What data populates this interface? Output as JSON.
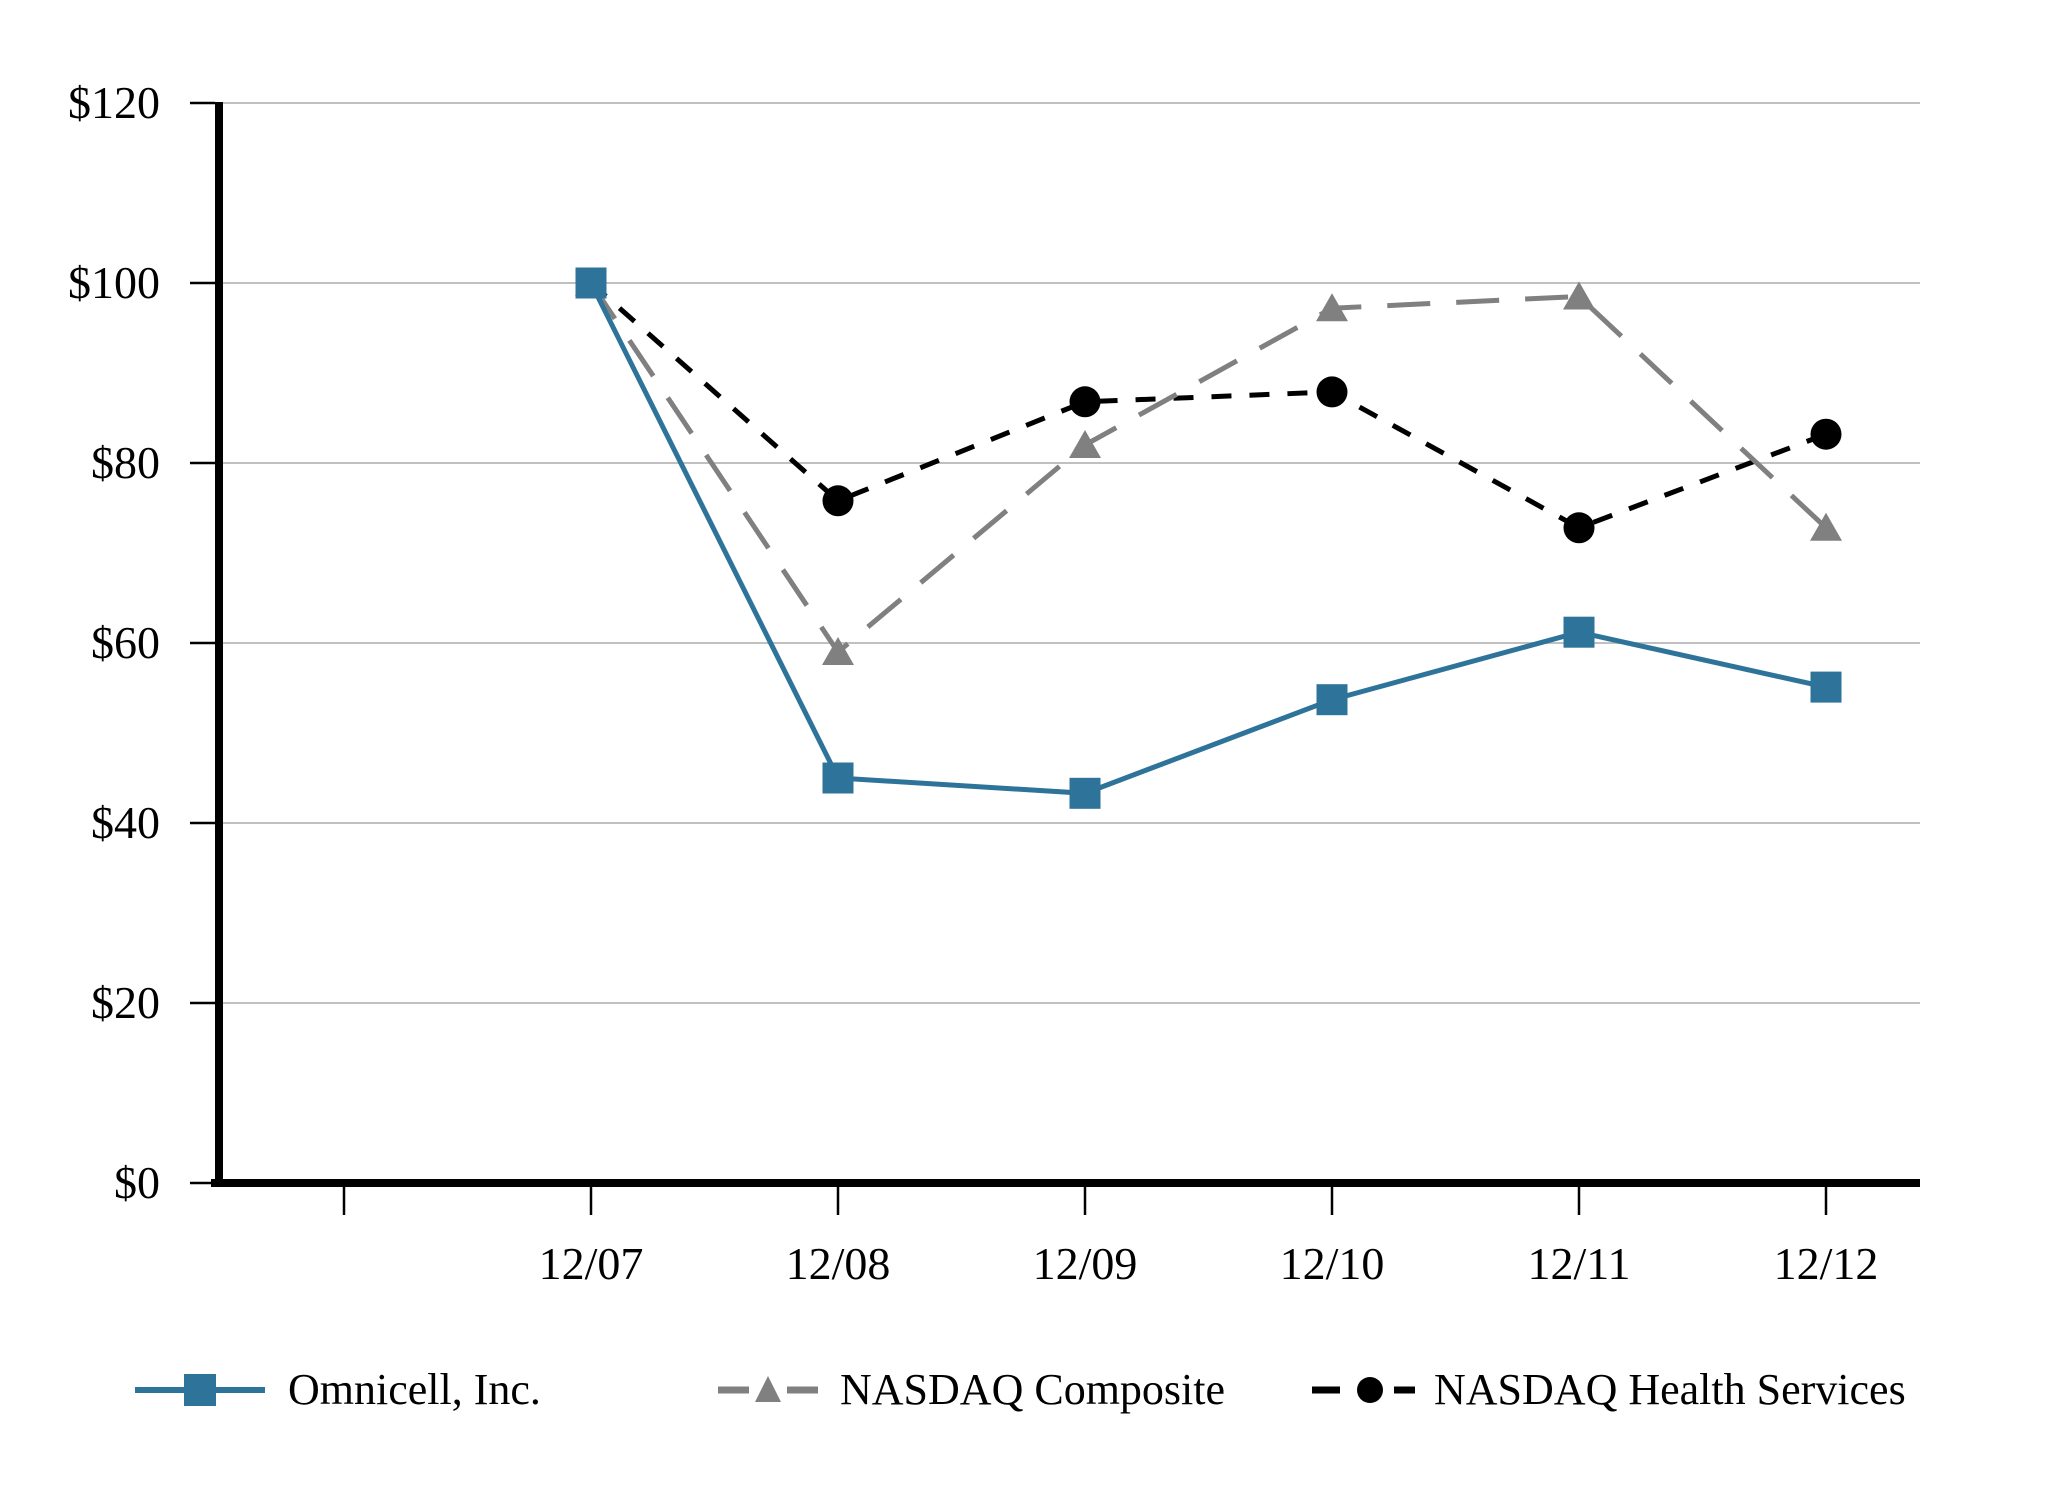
{
  "figure": {
    "background": "#FFFFFF"
  },
  "colors": {
    "grid": "#C0C0C0",
    "axis": "#000000",
    "text": "#000000"
  },
  "chart_data": {
    "type": "line",
    "title": "",
    "xlabel": "",
    "ylabel": "",
    "categories": [
      "12/07",
      "12/08",
      "12/09",
      "12/10",
      "12/11",
      "12/12"
    ],
    "series": [
      {
        "name": "Omnicell, Inc.",
        "color": "#2E7399",
        "marker": "square",
        "line_style": "solid",
        "values": [
          100,
          45,
          43.3,
          53.7,
          61.2,
          55.1
        ]
      },
      {
        "name": "NASDAQ Composite",
        "color": "#808080",
        "marker": "triangle",
        "line_style": "long-dash",
        "values": [
          100,
          59,
          82,
          97.2,
          98.5,
          72.8
        ]
      },
      {
        "name": "NASDAQ Health Services",
        "color": "#000000",
        "marker": "circle",
        "line_style": "short-dash",
        "values": [
          100,
          75.8,
          86.8,
          87.9,
          72.8,
          83.2
        ]
      }
    ],
    "y_tick_labels": [
      "$0",
      "$20",
      "$40",
      "$60",
      "$80",
      "$100",
      "$120"
    ],
    "y_tick_values": [
      0,
      20,
      40,
      60,
      80,
      100,
      120
    ],
    "ylim": [
      0,
      120
    ],
    "grid": "horizontal-only",
    "legend_position": "bottom"
  }
}
